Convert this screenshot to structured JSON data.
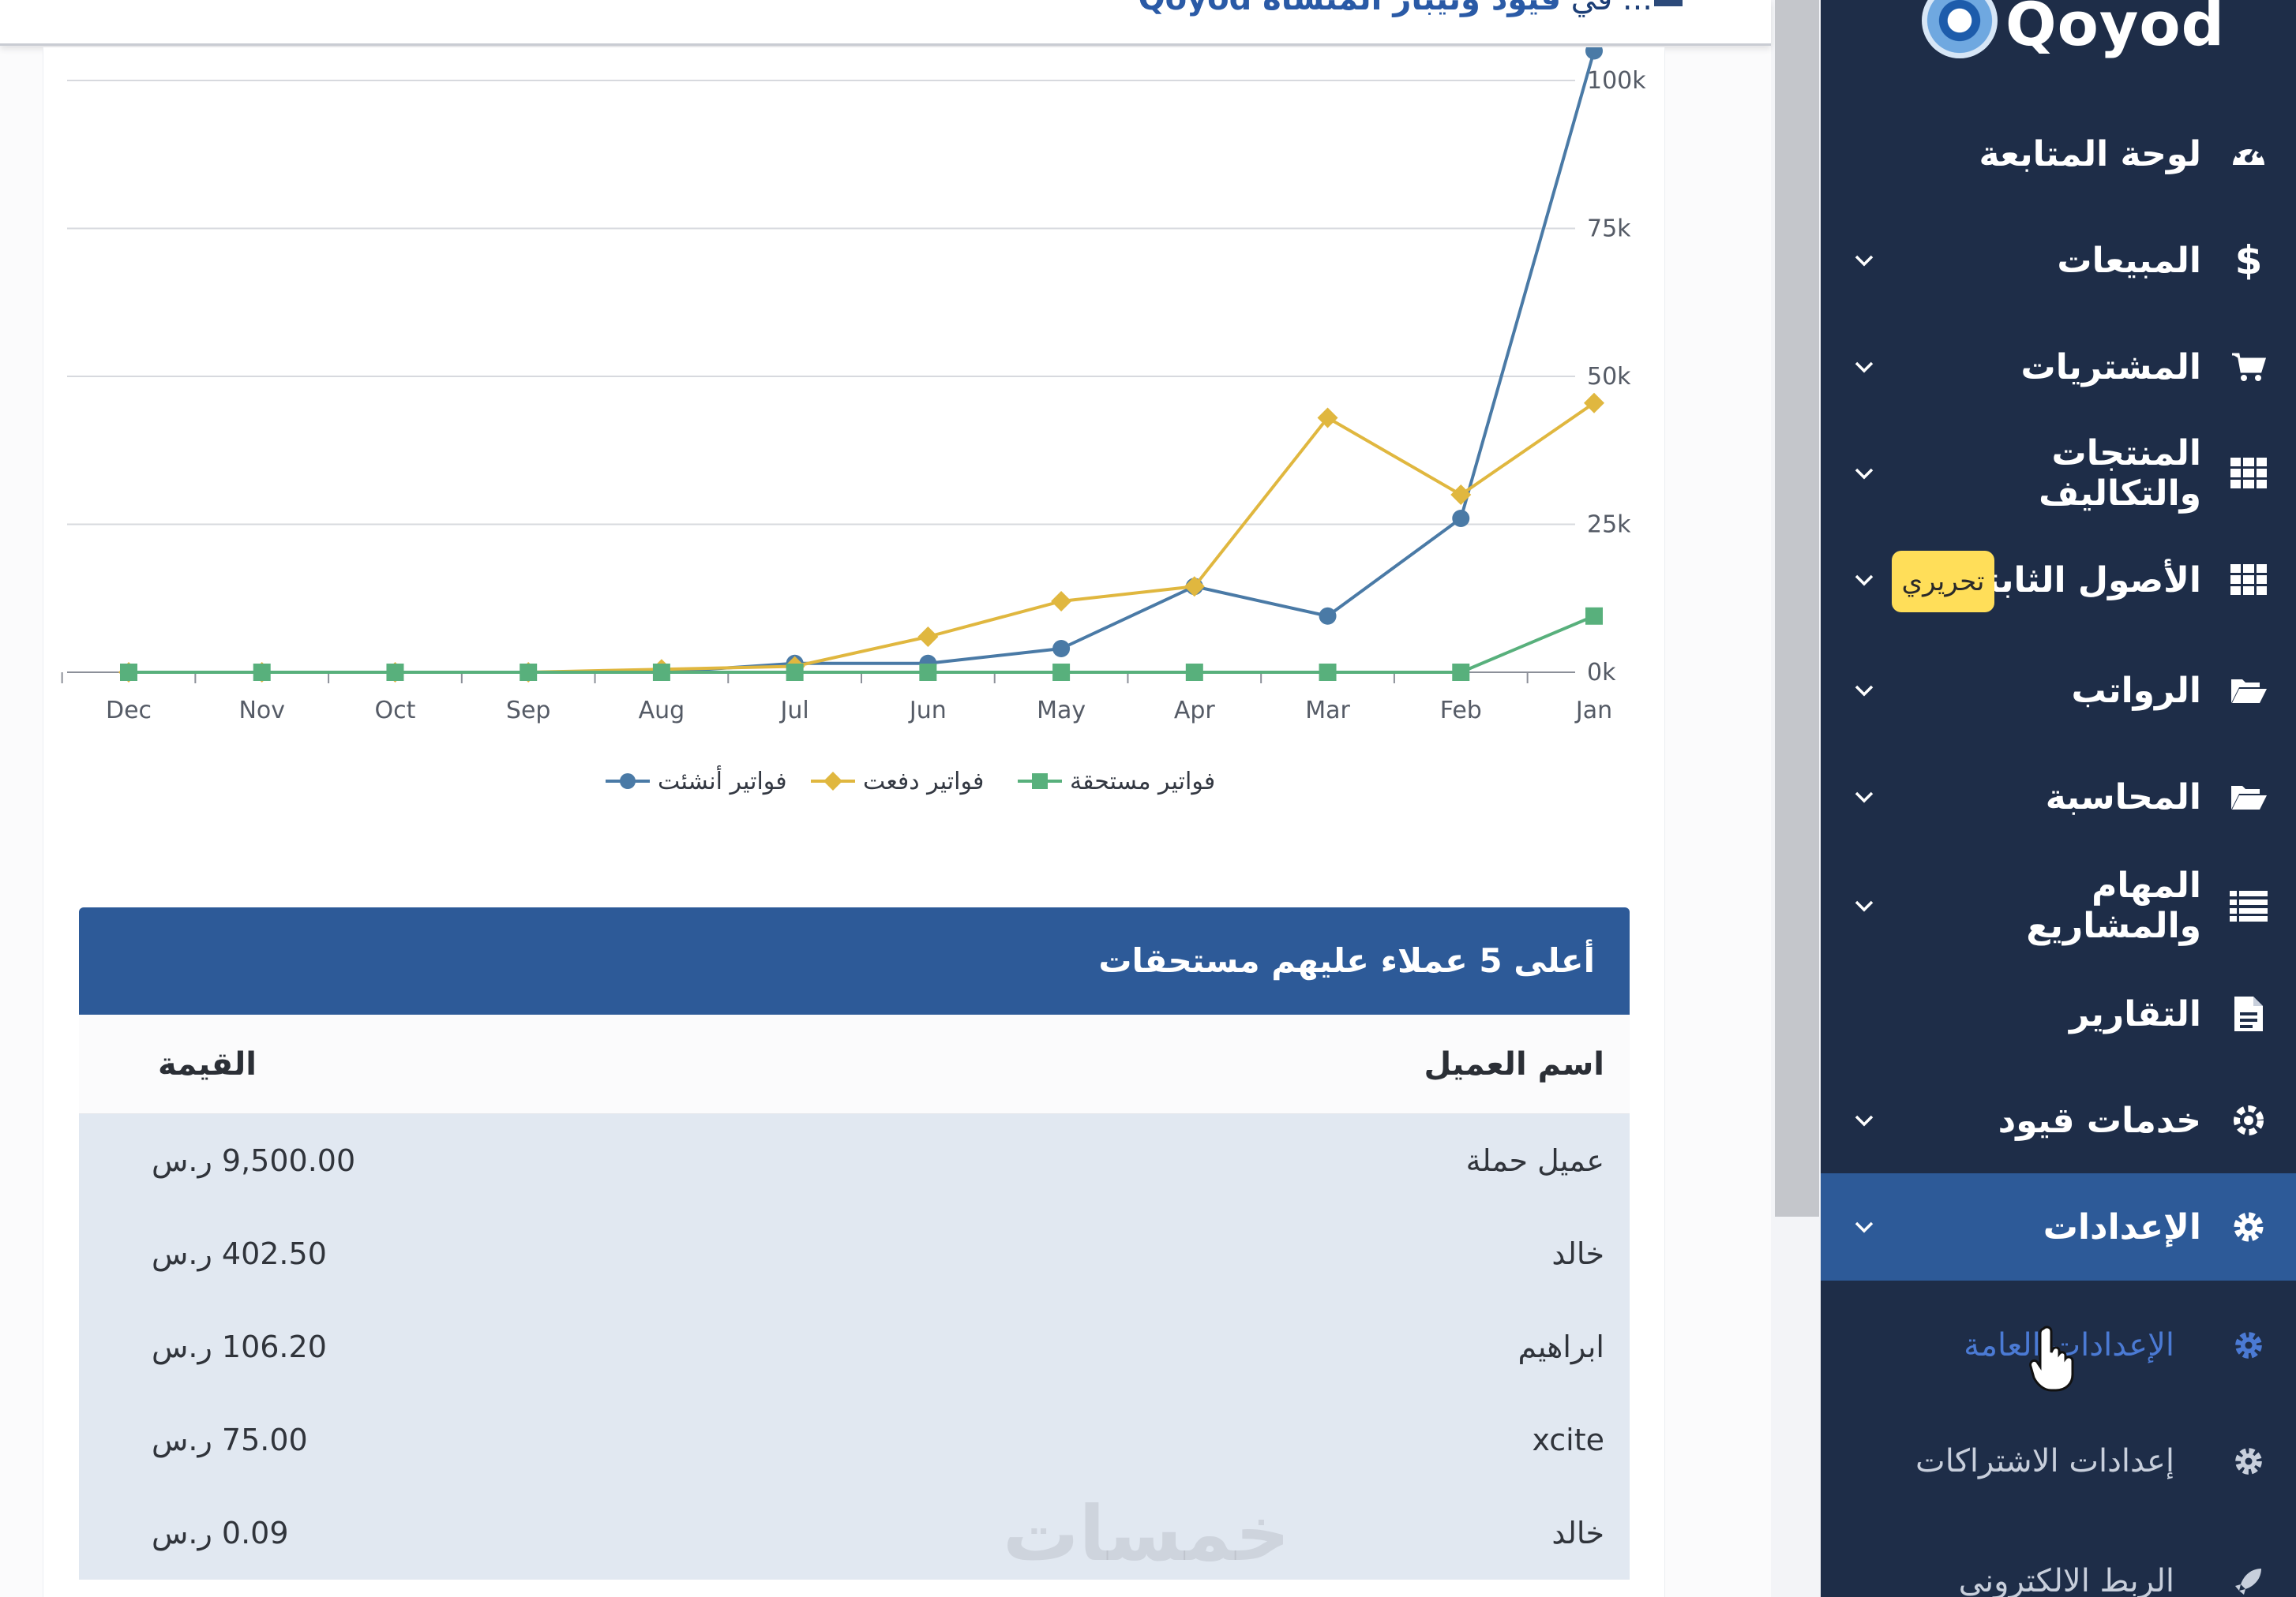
{
  "top_banner": {
    "prefix": "... في",
    "link": "قيود وتيبار المنشأة Qoyod"
  },
  "brand": {
    "logo_text": "Qoyod",
    "accent": "#2d5a98",
    "sidebar_bg": "#1e2d48"
  },
  "sidebar": {
    "items": [
      {
        "label": "لوحة المتابعة",
        "icon": "dashboard-icon",
        "has_chevron": false
      },
      {
        "label": "المبيعات",
        "icon": "dollar-icon",
        "has_chevron": true
      },
      {
        "label": "المشتريات",
        "icon": "cart-icon",
        "has_chevron": true
      },
      {
        "label": "المنتجات والتكاليف",
        "icon": "grid-icon",
        "has_chevron": true
      },
      {
        "label": "الأصول الثابتة",
        "icon": "grid-icon",
        "has_chevron": true
      },
      {
        "label": "الرواتب",
        "icon": "folder-open-icon",
        "has_chevron": true
      },
      {
        "label": "المحاسبة",
        "icon": "folder-open-icon",
        "has_chevron": true
      },
      {
        "label": "المهام والمشاريع",
        "icon": "list-icon",
        "has_chevron": true
      },
      {
        "label": "التقارير",
        "icon": "document-icon",
        "has_chevron": false
      },
      {
        "label": "خدمات قيود",
        "icon": "services-icon",
        "has_chevron": true
      },
      {
        "label": "الإعدادات",
        "icon": "gear-icon",
        "has_chevron": true,
        "active": true
      }
    ],
    "sub_items": [
      {
        "label": "الإعدادات العامة",
        "icon": "gear-icon",
        "hover": true
      },
      {
        "label": "إعدادات الاشتراكات",
        "icon": "gear-icon"
      },
      {
        "label": "الربط الالكتروني",
        "icon": "rocket-icon"
      }
    ],
    "edit_badge": "تحريري"
  },
  "chart_data": {
    "type": "line",
    "categories": [
      "Dec",
      "Nov",
      "Oct",
      "Sep",
      "Aug",
      "Jul",
      "Jun",
      "May",
      "Apr",
      "Mar",
      "Feb",
      "Jan"
    ],
    "y_ticks": [
      "0k",
      "25k",
      "50k",
      "75k",
      "100k"
    ],
    "ylim": [
      0,
      100000
    ],
    "grid": true,
    "legend_position": "bottom",
    "series": [
      {
        "name": "فواتير أنشئت",
        "color": "#4a7aa6",
        "marker": "circle",
        "values": [
          0,
          0,
          0,
          0,
          0,
          1500,
          1500,
          4000,
          14500,
          9500,
          26000,
          105000
        ]
      },
      {
        "name": "فواتير دفعت",
        "color": "#e0b73f",
        "marker": "diamond",
        "values": [
          0,
          0,
          0,
          0,
          500,
          1000,
          6000,
          12000,
          14500,
          43000,
          30000,
          45500
        ]
      },
      {
        "name": "فواتير مستحقة",
        "color": "#58b07c",
        "marker": "square",
        "values": [
          0,
          0,
          0,
          0,
          0,
          0,
          0,
          0,
          0,
          0,
          0,
          9500
        ]
      }
    ]
  },
  "top_customers": {
    "title": "أعلى 5 عملاء عليهم مستحقات",
    "col_name": "اسم العميل",
    "col_value": "القيمة",
    "rows": [
      {
        "name": "عميل حملة",
        "value": "9,500.00 ر.س"
      },
      {
        "name": "خالد",
        "value": "402.50 ر.س"
      },
      {
        "name": "ابراهيم",
        "value": "106.20 ر.س"
      },
      {
        "name": "xcite",
        "value": "75.00 ر.س"
      },
      {
        "name": "خالد",
        "value": "0.09 ر.س"
      }
    ]
  },
  "watermark": "خمسات"
}
